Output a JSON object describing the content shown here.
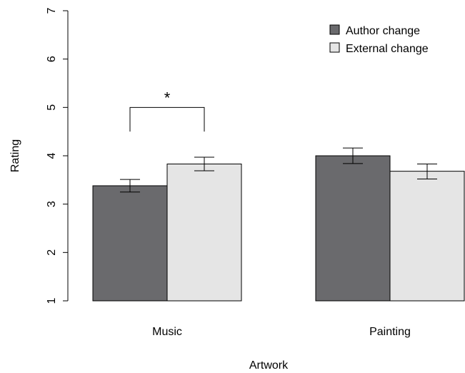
{
  "chart_data": {
    "type": "bar",
    "title": "",
    "xlabel": "Artwork",
    "ylabel": "Rating",
    "ylim": [
      1,
      7
    ],
    "yticks": [
      "1",
      "2",
      "3",
      "4",
      "5",
      "6",
      "7"
    ],
    "categories": [
      "Music",
      "Painting"
    ],
    "series": [
      {
        "name": "Author change",
        "color": "#6a6a6d",
        "values": [
          3.38,
          4.0
        ],
        "error_low": [
          3.25,
          3.84
        ],
        "error_high": [
          3.51,
          4.16
        ]
      },
      {
        "name": "External change",
        "color": "#e5e5e5",
        "values": [
          3.83,
          3.68
        ],
        "error_low": [
          3.69,
          3.52
        ],
        "error_high": [
          3.97,
          3.83
        ]
      }
    ],
    "legend_position": "top-right",
    "grid": false,
    "annotations": [
      {
        "text": "*",
        "category": "Music",
        "bracket_y": 5.0,
        "bracket_bottom": 4.5,
        "note": "significance"
      }
    ]
  }
}
